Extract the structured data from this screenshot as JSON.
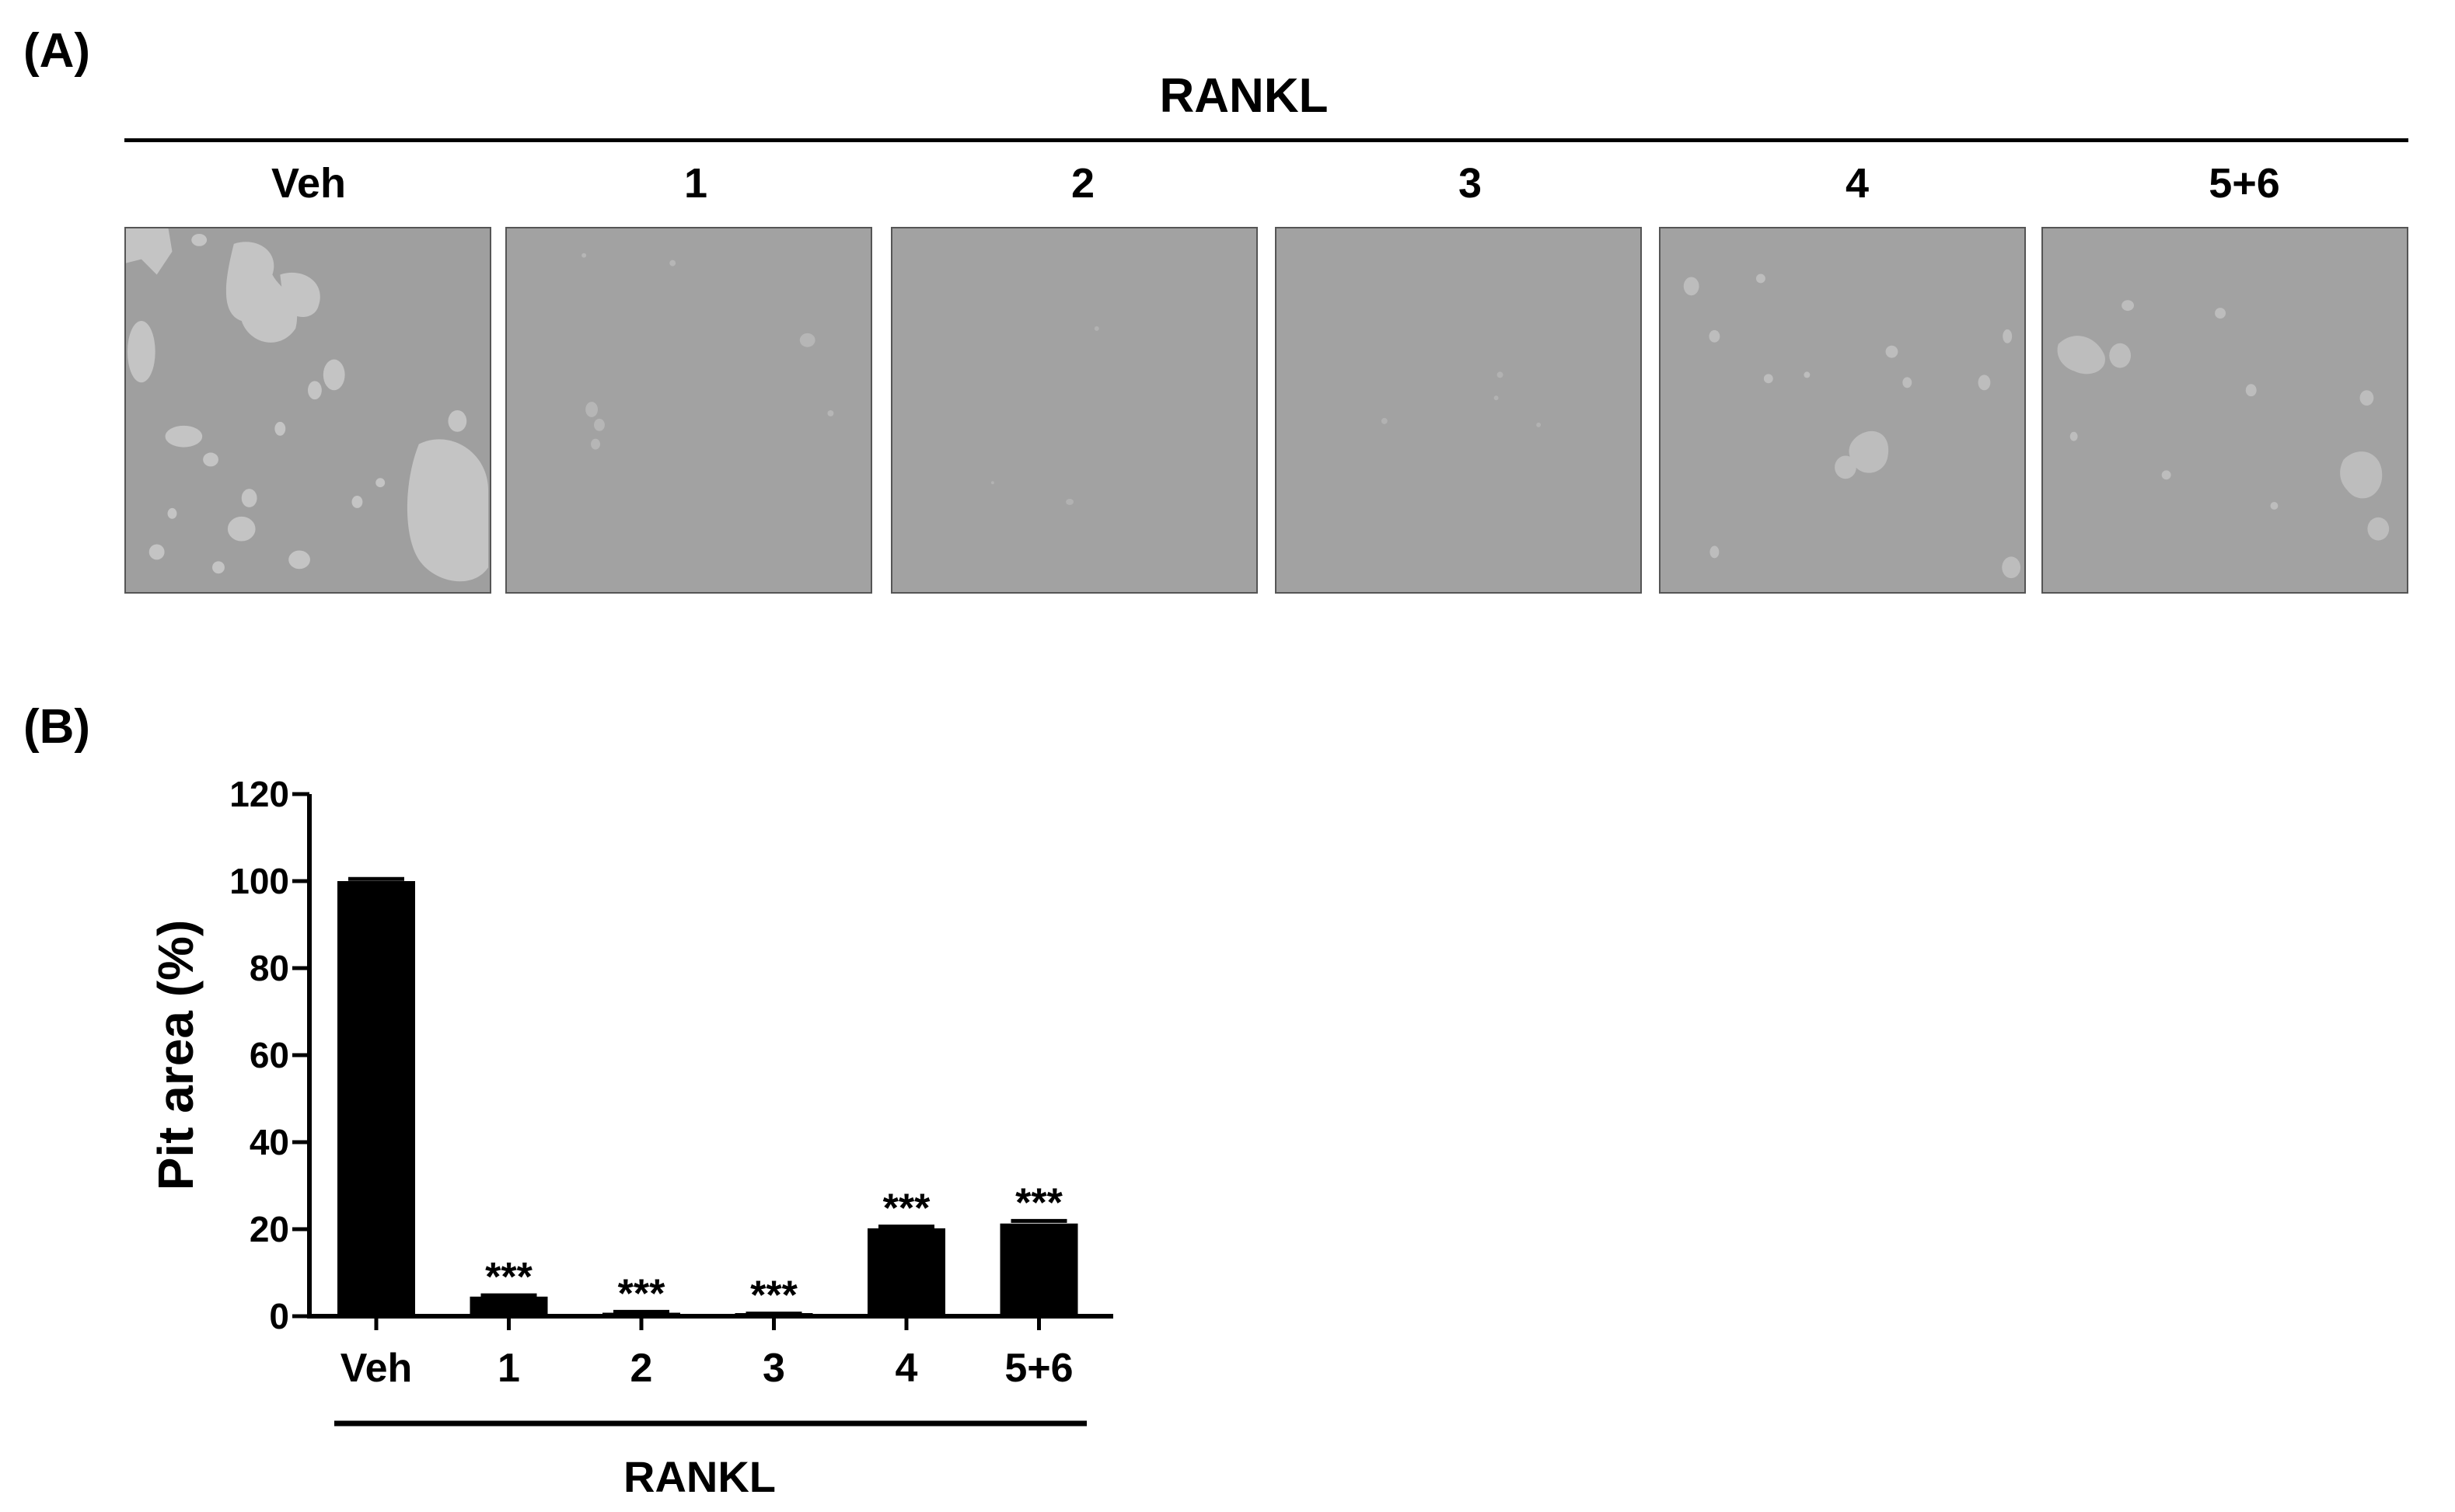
{
  "panels": {
    "a_label": "(A)",
    "b_label": "(B)"
  },
  "panel_a": {
    "group_label": "RANKL",
    "columns": [
      "Veh",
      "1",
      "2",
      "3",
      "4",
      "5+6"
    ],
    "image_fill_color": "#a2a2a2",
    "pit_color": "#c4c4c4"
  },
  "chart_data": {
    "type": "bar",
    "categories": [
      "Veh",
      "1",
      "2",
      "3",
      "4",
      "5+6"
    ],
    "values": [
      100,
      4.5,
      0.8,
      0.5,
      20.2,
      21.3
    ],
    "errors": [
      0.5,
      0.3,
      0.2,
      0.1,
      0.4,
      0.6
    ],
    "annotations": [
      "",
      "***",
      "***",
      "***",
      "***",
      "***"
    ],
    "ylabel": "Pit area (%)",
    "xgroup_label": "RANKL",
    "ylim": [
      0,
      120
    ],
    "yticks": [
      0,
      20,
      40,
      60,
      80,
      100,
      120
    ],
    "bar_color": "#000000",
    "grid": false,
    "legend": "none"
  }
}
